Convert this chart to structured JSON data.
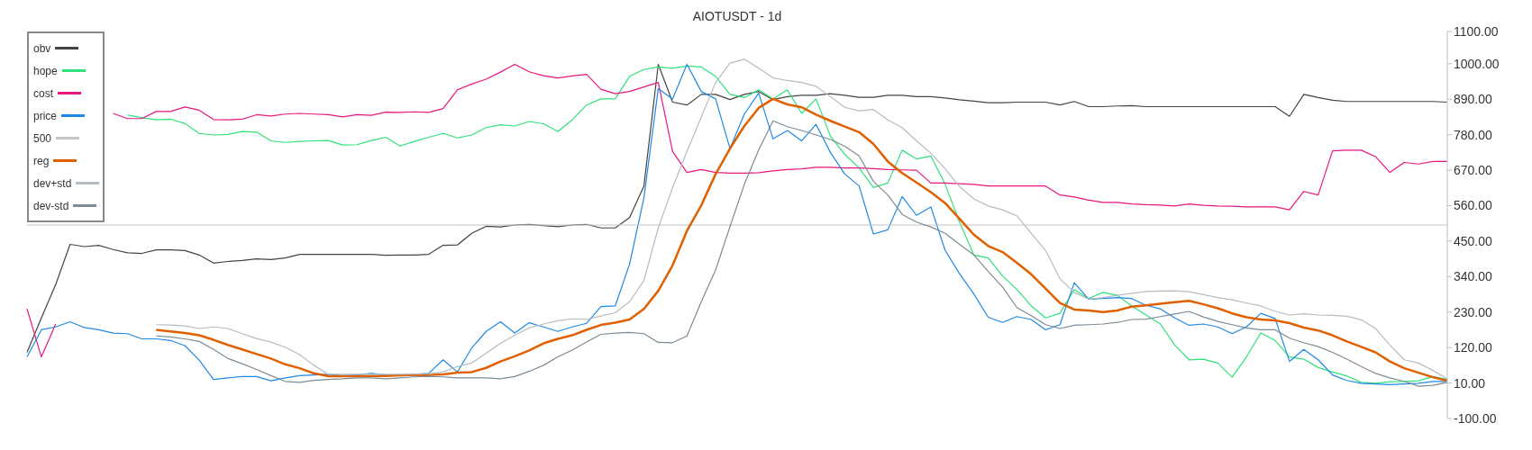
{
  "chart_data": {
    "type": "line",
    "title": "AIOTUSDT - 1d",
    "categories": [
      null,
      null,
      null,
      null,
      null,
      null,
      null,
      null,
      null,
      null,
      null,
      null,
      null,
      null,
      null,
      null,
      null,
      null,
      null,
      null,
      null,
      null,
      null,
      null,
      null,
      null,
      null,
      null,
      null,
      null,
      null,
      null,
      null,
      null,
      null,
      null,
      null,
      null,
      null,
      null,
      null,
      null,
      null,
      null,
      null,
      null,
      null,
      null,
      null,
      null,
      null,
      null,
      null,
      null,
      null,
      null,
      null,
      null,
      null,
      null,
      null,
      null,
      null,
      null,
      null,
      null,
      null,
      null,
      null,
      null,
      null,
      null,
      null,
      null,
      null,
      null,
      null,
      null,
      null,
      null,
      null,
      null,
      null,
      null,
      null,
      null,
      null,
      null,
      null,
      null,
      null,
      null,
      null,
      null,
      null,
      null,
      null,
      null,
      null,
      null
    ],
    "ylim": [
      -100,
      1100
    ],
    "yticks": [
      {
        "value": -100,
        "label": "-100.00"
      },
      {
        "value": 10,
        "label": "10.00"
      },
      {
        "value": 120,
        "label": "120.00"
      },
      {
        "value": 230,
        "label": "230.00"
      },
      {
        "value": 340,
        "label": "340.00"
      },
      {
        "value": 450,
        "label": "450.00"
      },
      {
        "value": 560,
        "label": "560.00"
      },
      {
        "value": 670,
        "label": "670.00"
      },
      {
        "value": 780,
        "label": "780.00"
      },
      {
        "value": 890,
        "label": "890.00"
      },
      {
        "value": 1000,
        "label": "1000.00"
      },
      {
        "value": 1100,
        "label": "1100.00"
      }
    ],
    "tick_labels": "y",
    "legend": "top left",
    "marker": "none",
    "line_style": "solid",
    "series": [
      {
        "name": "obv",
        "color": "#444444",
        "values": [
          105,
          212,
          316,
          440,
          433,
          437,
          424,
          414,
          412,
          423,
          423,
          421,
          407,
          382,
          387,
          390,
          395,
          393,
          398,
          409,
          409,
          409,
          409,
          409,
          409,
          406,
          407,
          407,
          409,
          437,
          438,
          474,
          496,
          494,
          500,
          502,
          498,
          495,
          500,
          502,
          491,
          491,
          523,
          621,
          998,
          881,
          872,
          905,
          905,
          889,
          905,
          914,
          889,
          898,
          902,
          902,
          907,
          902,
          896,
          896,
          902,
          902,
          898,
          898,
          894,
          888,
          884,
          879,
          879,
          881,
          881,
          881,
          872,
          883,
          867,
          867,
          869,
          870,
          867,
          867,
          867,
          867,
          867,
          867,
          867,
          867,
          867,
          867,
          837,
          905,
          895,
          887,
          883,
          883,
          883,
          883,
          883,
          883,
          883,
          881
        ]
      },
      {
        "name": "hope",
        "color": "#2ee27a",
        "values": [
          null,
          null,
          null,
          null,
          null,
          null,
          null,
          841,
          833,
          826,
          828,
          815,
          784,
          779,
          781,
          790,
          788,
          761,
          756,
          759,
          761,
          762,
          748,
          749,
          762,
          772,
          745,
          759,
          772,
          784,
          770,
          779,
          802,
          811,
          807,
          821,
          814,
          790,
          826,
          872,
          891,
          891,
          961,
          982,
          990,
          986,
          993,
          990,
          961,
          905,
          895,
          919,
          891,
          919,
          846,
          891,
          776,
          719,
          677,
          616,
          630,
          732,
          705,
          714,
          626,
          509,
          407,
          398,
          342,
          300,
          249,
          212,
          226,
          300,
          272,
          291,
          282,
          249,
          221,
          193,
          128,
          82,
          84,
          72,
          28,
          91,
          165,
          142,
          91,
          84,
          58,
          44,
          32,
          12,
          9,
          14,
          15,
          17,
          30,
          21
        ]
      },
      {
        "name": "cost",
        "color": "#e8177f",
        "values": [
          240,
          91,
          193,
          null,
          null,
          null,
          846,
          830,
          830,
          852,
          852,
          866,
          856,
          827,
          826,
          828,
          842,
          838,
          844,
          846,
          844,
          842,
          835,
          842,
          840,
          850,
          849,
          851,
          849,
          861,
          919,
          937,
          952,
          974,
          998,
          975,
          963,
          956,
          962,
          967,
          921,
          907,
          914,
          928,
          942,
          728,
          663,
          672,
          663,
          661,
          661,
          662,
          668,
          672,
          674,
          679,
          679,
          677,
          677,
          675,
          672,
          671,
          670,
          630,
          630,
          628,
          626,
          621,
          621,
          621,
          621,
          621,
          593,
          587,
          577,
          570,
          570,
          565,
          563,
          562,
          559,
          565,
          561,
          559,
          558,
          556,
          556,
          556,
          547,
          604,
          593,
          730,
          732,
          732,
          712,
          663,
          694,
          689,
          697,
          697
        ]
      },
      {
        "name": "price",
        "color": "#1e88e5",
        "values": [
          91,
          175,
          184,
          200,
          182,
          175,
          165,
          163,
          147,
          147,
          142,
          126,
          81,
          21,
          26,
          30,
          30,
          17,
          26,
          33,
          35,
          37,
          33,
          35,
          40,
          35,
          33,
          37,
          40,
          82,
          44,
          119,
          170,
          200,
          165,
          197,
          184,
          170,
          184,
          195,
          247,
          249,
          379,
          584,
          923,
          891,
          998,
          914,
          891,
          737,
          844,
          909,
          767,
          793,
          761,
          812,
          725,
          658,
          621,
          472,
          485,
          588,
          530,
          556,
          421,
          349,
          286,
          214,
          198,
          216,
          207,
          175,
          191,
          321,
          270,
          272,
          275,
          272,
          251,
          240,
          212,
          189,
          193,
          184,
          163,
          184,
          226,
          210,
          77,
          114,
          82,
          35,
          18,
          9,
          7,
          5,
          7,
          9,
          15,
          15
        ]
      },
      {
        "name": "500",
        "color": "#c4c4c4",
        "values": [
          500,
          500,
          500,
          500,
          500,
          500,
          500,
          500,
          500,
          500,
          500,
          500,
          500,
          500,
          500,
          500,
          500,
          500,
          500,
          500,
          500,
          500,
          500,
          500,
          500,
          500,
          500,
          500,
          500,
          500,
          500,
          500,
          500,
          500,
          500,
          500,
          500,
          500,
          500,
          500,
          500,
          500,
          500,
          500,
          500,
          500,
          500,
          500,
          500,
          500,
          500,
          500,
          500,
          500,
          500,
          500,
          500,
          500,
          500,
          500,
          500,
          500,
          500,
          500,
          500,
          500,
          500,
          500,
          500,
          500,
          500,
          500,
          500,
          500,
          500,
          500,
          500,
          500,
          500,
          500,
          500,
          500,
          500,
          500,
          500,
          500,
          500,
          500,
          500,
          500,
          500,
          500,
          500,
          500,
          500,
          500,
          500,
          500,
          500,
          500
        ]
      },
      {
        "name": "reg",
        "color": "#e06000",
        "values": [
          null,
          null,
          null,
          null,
          null,
          null,
          null,
          null,
          null,
          175,
          170,
          165,
          158,
          144,
          128,
          114,
          100,
          86,
          68,
          56,
          40,
          31,
          31,
          31,
          32,
          32,
          34,
          35,
          35,
          37,
          42,
          44,
          57,
          77,
          93,
          111,
          133,
          147,
          158,
          175,
          190,
          197,
          207,
          240,
          296,
          375,
          482,
          561,
          658,
          737,
          807,
          863,
          891,
          874,
          865,
          842,
          823,
          805,
          788,
          751,
          697,
          661,
          632,
          602,
          568,
          519,
          470,
          435,
          416,
          383,
          347,
          303,
          258,
          238,
          235,
          230,
          235,
          247,
          251,
          256,
          261,
          265,
          254,
          242,
          226,
          214,
          207,
          204,
          196,
          182,
          173,
          158,
          139,
          122,
          105,
          77,
          56,
          42,
          28,
          17
        ]
      },
      {
        "name": "dev+std",
        "color": "#b4bcc2",
        "values": [
          null,
          null,
          null,
          null,
          null,
          null,
          null,
          null,
          null,
          191,
          190,
          187,
          179,
          184,
          179,
          163,
          148,
          137,
          121,
          98,
          65,
          37,
          37,
          37,
          37,
          37,
          37,
          37,
          39,
          44,
          61,
          72,
          102,
          133,
          158,
          181,
          193,
          203,
          209,
          207,
          218,
          228,
          262,
          328,
          491,
          616,
          728,
          835,
          942,
          1002,
          1014,
          986,
          956,
          948,
          942,
          930,
          898,
          865,
          854,
          858,
          826,
          802,
          761,
          723,
          674,
          619,
          581,
          559,
          547,
          528,
          474,
          421,
          333,
          291,
          270,
          275,
          282,
          288,
          294,
          295,
          296,
          293,
          284,
          275,
          268,
          258,
          249,
          232,
          221,
          225,
          221,
          220,
          217,
          206,
          179,
          128,
          82,
          72,
          49,
          23
        ]
      },
      {
        "name": "dev-std",
        "color": "#7d8b94",
        "values": [
          null,
          null,
          null,
          null,
          null,
          null,
          null,
          null,
          null,
          156,
          153,
          147,
          139,
          114,
          86,
          70,
          52,
          33,
          15,
          12,
          18,
          21,
          23,
          26,
          26,
          23,
          26,
          29,
          31,
          29,
          26,
          26,
          26,
          23,
          30,
          46,
          65,
          91,
          112,
          137,
          161,
          165,
          167,
          163,
          136,
          135,
          156,
          262,
          361,
          495,
          626,
          733,
          823,
          805,
          793,
          779,
          765,
          744,
          714,
          635,
          593,
          533,
          509,
          494,
          474,
          440,
          407,
          356,
          308,
          244,
          219,
          191,
          179,
          189,
          191,
          193,
          198,
          207,
          208,
          216,
          224,
          232,
          215,
          201,
          191,
          181,
          175,
          175,
          149,
          135,
          123,
          105,
          84,
          61,
          40,
          26,
          15,
          0,
          3,
          12
        ]
      }
    ]
  }
}
